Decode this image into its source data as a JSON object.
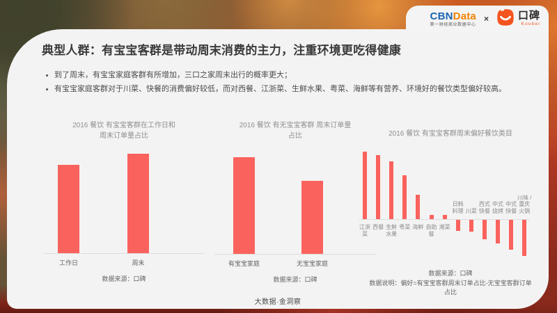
{
  "slide": {
    "title": "典型人群：有宝宝客群是带动周末消费的主力，注重环境更吃得健康",
    "bullets": [
      "到了周末，有宝宝家庭客群有所增加，三口之家周末出行的概率更大；",
      "有宝宝家庭客群对于川菜、快餐的消费偏好较低，而对西餐、江浙菜、生鲜水果、粤菜、海鲜等有营养、环境好的餐饮类型偏好较高。"
    ],
    "footer_text": "大数据·金洞察"
  },
  "header": {
    "cbn": "CBN",
    "data": "Data",
    "cbn_subtitle": "第一财经商业数据中心",
    "separator": "×",
    "koubei_cn": "口碑",
    "koubei_en": "Koubei"
  },
  "colors": {
    "bar": "#FA625D",
    "cbn_blue": "#1A66B2",
    "cbn_orange": "#F18101",
    "koubei_orange": "#F4541D",
    "card_bg": "#F4F3F3"
  },
  "chart_data": [
    {
      "type": "bar",
      "title": "2016 餐饮 有宝宝客群在工作日和周末订单量占比",
      "categories": [
        "工作日",
        "周末"
      ],
      "values": [
        47,
        53
      ],
      "ylim": [
        0,
        60
      ],
      "grid": false,
      "legend": "none",
      "source": "数据来源：口碑"
    },
    {
      "type": "bar",
      "title": "2016 餐饮 有无宝宝客群 周末订单量占比",
      "categories": [
        "有宝宝家庭",
        "无宝宝家庭"
      ],
      "values": [
        57,
        43
      ],
      "ylim": [
        0,
        60
      ],
      "grid": false,
      "legend": "none",
      "source": "数据来源：口碑"
    },
    {
      "type": "bar",
      "title": "2016 餐饮 有宝宝客群周末偏好餐饮类目",
      "categories": [
        "江浙菜",
        "西餐",
        "生鲜水果",
        "粤菜",
        "海鲜",
        "自助餐",
        "湘菜",
        "日韩料理",
        "川菜",
        "西式快餐",
        "中式烧烤",
        "中式快餐",
        "川味/重庆火锅"
      ],
      "label_lines": [
        [
          "江浙",
          "菜"
        ],
        [
          "西餐"
        ],
        [
          "生鲜",
          "水果"
        ],
        [
          "粤菜"
        ],
        [
          "海鲜"
        ],
        [
          "自助",
          "餐"
        ],
        [
          "湘菜"
        ],
        [
          "日韩",
          "料理"
        ],
        [
          "川菜"
        ],
        [
          "西式",
          "快餐"
        ],
        [
          "中式",
          "烧烤"
        ],
        [
          "中式",
          "快餐"
        ],
        [
          "川味 /",
          "重庆",
          "火锅"
        ]
      ],
      "values": [
        9.7,
        9.2,
        8.3,
        6.3,
        3.5,
        0.6,
        0.6,
        -1.6,
        -1.7,
        -2.8,
        -3.4,
        -4.3,
        -5.2
      ],
      "ylim": [
        -6,
        10
      ],
      "grid": false,
      "legend": "none",
      "source": "数据来源：口碑",
      "note": "数据说明：偏好=有宝宝客群周末订单占比-无宝宝客群订单占比"
    }
  ]
}
